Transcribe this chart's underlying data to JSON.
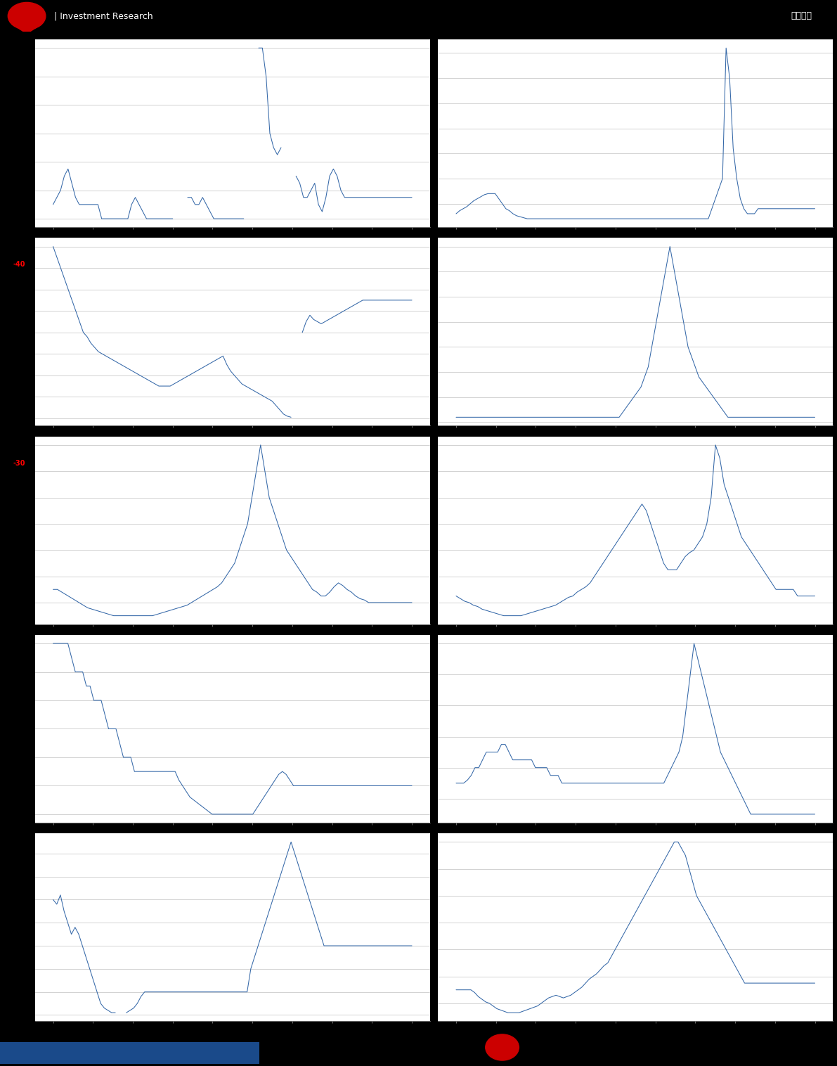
{
  "bg_color": "#000000",
  "chart_bg": "#ffffff",
  "line_color": "#3568a8",
  "grid_color": "#c0c0c0",
  "separator_color": "#888888",
  "header_text1": "| Investment Research",
  "header_text2": "估值周报",
  "rows": 5,
  "cols": 2,
  "charts": [
    {
      "id": 0,
      "row": 0,
      "col": 0,
      "left_label": "-40",
      "data": [
        3,
        3.5,
        4,
        5,
        5.5,
        4.5,
        3.5,
        3,
        3,
        3,
        3,
        3,
        3,
        2,
        2,
        2,
        2,
        2,
        2,
        2,
        2,
        3,
        3.5,
        3,
        2.5,
        2,
        2,
        2,
        2,
        2,
        2,
        2,
        2,
        -8,
        -8,
        -8,
        3.5,
        3.5,
        3,
        3,
        3.5,
        3,
        2.5,
        2,
        2,
        2,
        2,
        2,
        2,
        2,
        2,
        2,
        -8,
        -8,
        -8,
        14,
        14,
        12,
        8,
        7,
        6.5,
        7,
        -8,
        -8,
        -8,
        5,
        4.5,
        3.5,
        3.5,
        4,
        4.5,
        3,
        2.5,
        3.5,
        5,
        5.5,
        5,
        4,
        3.5,
        3.5,
        3.5,
        3.5,
        3.5,
        3.5,
        3.5,
        3.5,
        3.5,
        3.5,
        3.5,
        3.5,
        3.5,
        3.5,
        3.5,
        3.5,
        3.5,
        3.5,
        3.5
      ]
    },
    {
      "id": 1,
      "row": 0,
      "col": 1,
      "left_label": "",
      "data": [
        1.5,
        1.8,
        2,
        2.2,
        2.5,
        2.8,
        3,
        3.2,
        3.4,
        3.5,
        3.5,
        3.5,
        3,
        2.5,
        2,
        1.8,
        1.5,
        1.3,
        1.2,
        1.1,
        1,
        1,
        1,
        1,
        1,
        1,
        1,
        1,
        1,
        1,
        1,
        1,
        1,
        1,
        1,
        1,
        1,
        1,
        1,
        1,
        1,
        1,
        1,
        1,
        1,
        1,
        1,
        1,
        1,
        1,
        1,
        1,
        1,
        1,
        1,
        1,
        1,
        1,
        1,
        1,
        1,
        1,
        1,
        1,
        1,
        1,
        1,
        1,
        1,
        1,
        1,
        1,
        2,
        3,
        4,
        5,
        18,
        15,
        8,
        5,
        3,
        2,
        1.5,
        1.5,
        1.5,
        2,
        2,
        2,
        2,
        2,
        2,
        2,
        2,
        2,
        2,
        2,
        2,
        2,
        2,
        2,
        2,
        2
      ]
    },
    {
      "id": 2,
      "row": 1,
      "col": 0,
      "left_label": "-30",
      "data": [
        8,
        7.5,
        7,
        6.5,
        6,
        5.5,
        5,
        4.5,
        4,
        3.8,
        3.5,
        3.3,
        3.1,
        3,
        2.9,
        2.8,
        2.7,
        2.6,
        2.5,
        2.4,
        2.3,
        2.2,
        2.1,
        2,
        1.9,
        1.8,
        1.7,
        1.6,
        1.5,
        1.5,
        1.5,
        1.5,
        1.6,
        1.7,
        1.8,
        1.9,
        2,
        2.1,
        2.2,
        2.3,
        2.4,
        2.5,
        2.6,
        2.7,
        2.8,
        2.9,
        2.5,
        2.2,
        2,
        1.8,
        1.6,
        1.5,
        1.4,
        1.3,
        1.2,
        1.1,
        1.0,
        0.9,
        0.8,
        0.6,
        0.4,
        0.2,
        0.1,
        0.05,
        -8,
        -8,
        4,
        4.5,
        4.8,
        4.6,
        4.5,
        4.4,
        4.5,
        4.6,
        4.7,
        4.8,
        4.9,
        5.0,
        5.1,
        5.2,
        5.3,
        5.4,
        5.5,
        5.5,
        5.5,
        5.5,
        5.5,
        5.5,
        5.5,
        5.5,
        5.5,
        5.5,
        5.5,
        5.5,
        5.5,
        5.5
      ]
    },
    {
      "id": 3,
      "row": 1,
      "col": 1,
      "left_label": "",
      "data": [
        3,
        3,
        3,
        3,
        3,
        3,
        3,
        3,
        3,
        3,
        3,
        3,
        3,
        3,
        3,
        3,
        3,
        3,
        3,
        3,
        3,
        3,
        3,
        3,
        3,
        3,
        3,
        3,
        3,
        3,
        3,
        3,
        3,
        3,
        3,
        3,
        3,
        3,
        3,
        3,
        3,
        3,
        3,
        3,
        3,
        3,
        3.5,
        4,
        4.5,
        5,
        5.5,
        6,
        7,
        8,
        10,
        12,
        14,
        16,
        18,
        20,
        18,
        16,
        14,
        12,
        10,
        9,
        8,
        7,
        6.5,
        6,
        5.5,
        5,
        4.5,
        4,
        3.5,
        3,
        3,
        3,
        3,
        3,
        3,
        3,
        3,
        3,
        3,
        3,
        3,
        3,
        3,
        3,
        3,
        3,
        3,
        3,
        3,
        3,
        3,
        3,
        3,
        3
      ]
    },
    {
      "id": 4,
      "row": 2,
      "col": 0,
      "left_label": "",
      "data": [
        3,
        3,
        2.8,
        2.6,
        2.4,
        2.2,
        2,
        1.8,
        1.6,
        1.5,
        1.4,
        1.3,
        1.2,
        1.1,
        1,
        1,
        1,
        1,
        1,
        1,
        1,
        1,
        1,
        1,
        1.1,
        1.2,
        1.3,
        1.4,
        1.5,
        1.6,
        1.7,
        1.8,
        2,
        2.2,
        2.4,
        2.6,
        2.8,
        3,
        3.2,
        3.5,
        4,
        4.5,
        5,
        6,
        7,
        8,
        10,
        12,
        14,
        12,
        10,
        9,
        8,
        7,
        6,
        5.5,
        5,
        4.5,
        4,
        3.5,
        3,
        2.8,
        2.5,
        2.5,
        2.8,
        3.2,
        3.5,
        3.3,
        3,
        2.8,
        2.5,
        2.3,
        2.2,
        2,
        2,
        2,
        2,
        2,
        2,
        2,
        2,
        2,
        2,
        2
      ]
    },
    {
      "id": 5,
      "row": 2,
      "col": 1,
      "left_label": "",
      "data": [
        2.5,
        2.3,
        2.1,
        2,
        1.8,
        1.7,
        1.5,
        1.4,
        1.3,
        1.2,
        1.1,
        1,
        1,
        1,
        1,
        1,
        1.1,
        1.2,
        1.3,
        1.4,
        1.5,
        1.6,
        1.7,
        1.8,
        2,
        2.2,
        2.4,
        2.5,
        2.8,
        3,
        3.2,
        3.5,
        4,
        4.5,
        5,
        5.5,
        6,
        6.5,
        7,
        7.5,
        8,
        8.5,
        9,
        9.5,
        9,
        8,
        7,
        6,
        5,
        4.5,
        4.5,
        4.5,
        5,
        5.5,
        5.8,
        6,
        6.5,
        7,
        8,
        10,
        14,
        13,
        11,
        10,
        9,
        8,
        7,
        6.5,
        6,
        5.5,
        5,
        4.5,
        4,
        3.5,
        3,
        3,
        3,
        3,
        3,
        2.5,
        2.5,
        2.5,
        2.5,
        2.5
      ]
    },
    {
      "id": 6,
      "row": 3,
      "col": 0,
      "left_label": "",
      "data": [
        8,
        8,
        8,
        8,
        8,
        7.5,
        7,
        7,
        7,
        6.5,
        6.5,
        6,
        6,
        6,
        5.5,
        5,
        5,
        5,
        4.5,
        4,
        4,
        4,
        3.5,
        3.5,
        3.5,
        3.5,
        3.5,
        3.5,
        3.5,
        3.5,
        3.5,
        3.5,
        3.5,
        3.5,
        3.2,
        3,
        2.8,
        2.6,
        2.5,
        2.4,
        2.3,
        2.2,
        2.1,
        2,
        2,
        2,
        2,
        2,
        2,
        2,
        2,
        2,
        2,
        2,
        2,
        2.2,
        2.4,
        2.6,
        2.8,
        3,
        3.2,
        3.4,
        3.5,
        3.4,
        3.2,
        3,
        3,
        3,
        3,
        3,
        3,
        3,
        3,
        3,
        3,
        3,
        3,
        3,
        3,
        3,
        3,
        3,
        3,
        3,
        3,
        3,
        3,
        3,
        3,
        3,
        3,
        3,
        3,
        3,
        3,
        3,
        3,
        3
      ]
    },
    {
      "id": 7,
      "row": 3,
      "col": 1,
      "left_label": "",
      "data": [
        5,
        5,
        5,
        5.2,
        5.5,
        6,
        6,
        6.5,
        7,
        7,
        7,
        7,
        7.5,
        7.5,
        7,
        6.5,
        6.5,
        6.5,
        6.5,
        6.5,
        6.5,
        6,
        6,
        6,
        6,
        5.5,
        5.5,
        5.5,
        5,
        5,
        5,
        5,
        5,
        5,
        5,
        5,
        5,
        5,
        5,
        5,
        5,
        5,
        5,
        5,
        5,
        5,
        5,
        5,
        5,
        5,
        5,
        5,
        5,
        5,
        5,
        5,
        5.5,
        6,
        6.5,
        7,
        8,
        10,
        12,
        14,
        13,
        12,
        11,
        10,
        9,
        8,
        7,
        6.5,
        6,
        5.5,
        5,
        4.5,
        4,
        3.5,
        3,
        3,
        3,
        3,
        3,
        3,
        3,
        3,
        3,
        3,
        3,
        3,
        3,
        3,
        3,
        3,
        3,
        3
      ]
    },
    {
      "id": 8,
      "row": 4,
      "col": 0,
      "left_label": "",
      "data": [
        5,
        4.8,
        5.2,
        4.5,
        4,
        3.5,
        3.8,
        3.5,
        3,
        2.5,
        2,
        1.5,
        1,
        0.5,
        0.3,
        0.2,
        0.1,
        0.1,
        -8,
        -8,
        0.1,
        0.2,
        0.3,
        0.5,
        0.8,
        1,
        1,
        1,
        1,
        1,
        1,
        1,
        1,
        1,
        1,
        1,
        1,
        1,
        1,
        1,
        1,
        1,
        1,
        1,
        1,
        1,
        1,
        1,
        1,
        1,
        1,
        1,
        1,
        1,
        2,
        2.5,
        3,
        3.5,
        4,
        4.5,
        5,
        5.5,
        6,
        6.5,
        7,
        7.5,
        7,
        6.5,
        6,
        5.5,
        5,
        4.5,
        4,
        3.5,
        3,
        3,
        3,
        3,
        3,
        3,
        3,
        3,
        3,
        3,
        3,
        3,
        3,
        3,
        3,
        3,
        3,
        3,
        3,
        3,
        3,
        3,
        3,
        3,
        3
      ]
    },
    {
      "id": 9,
      "row": 4,
      "col": 1,
      "left_label": "",
      "data": [
        3,
        3,
        3,
        3,
        3,
        2.8,
        2.5,
        2.3,
        2.1,
        2,
        1.8,
        1.6,
        1.5,
        1.4,
        1.3,
        1.3,
        1.3,
        1.3,
        1.4,
        1.5,
        1.6,
        1.7,
        1.8,
        2,
        2.2,
        2.4,
        2.5,
        2.6,
        2.5,
        2.4,
        2.5,
        2.6,
        2.8,
        3,
        3.2,
        3.5,
        3.8,
        4,
        4.2,
        4.5,
        4.8,
        5,
        5.5,
        6,
        6.5,
        7,
        7.5,
        8,
        8.5,
        9,
        9.5,
        10,
        10.5,
        11,
        11.5,
        12,
        12.5,
        13,
        13.5,
        14,
        14,
        13.5,
        13,
        12,
        11,
        10,
        9.5,
        9,
        8.5,
        8,
        7.5,
        7,
        6.5,
        6,
        5.5,
        5,
        4.5,
        4,
        3.5,
        3.5,
        3.5,
        3.5,
        3.5,
        3.5,
        3.5,
        3.5,
        3.5,
        3.5,
        3.5,
        3.5,
        3.5,
        3.5,
        3.5,
        3.5,
        3.5,
        3.5,
        3.5,
        3.5
      ]
    }
  ]
}
